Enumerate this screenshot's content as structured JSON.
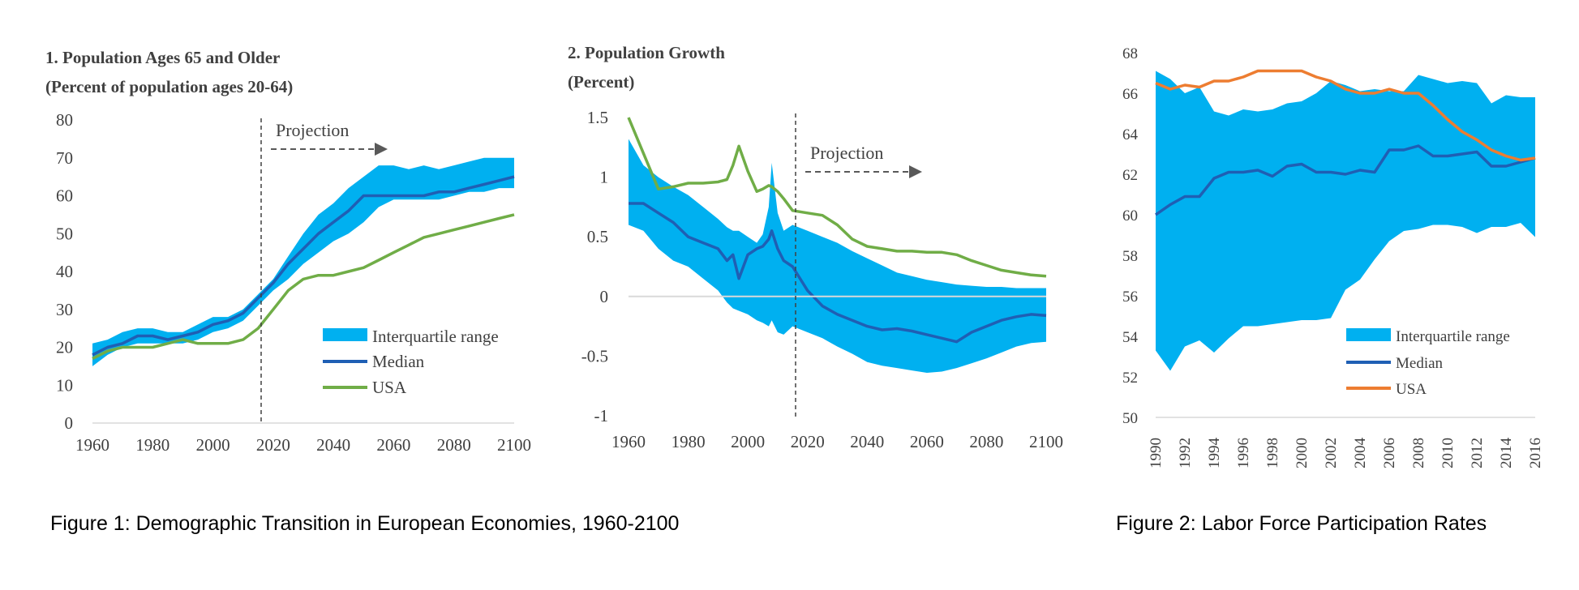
{
  "colors": {
    "iqr": "#00b0f0",
    "median": "#1f5fb4",
    "usa_green": "#70ad47",
    "usa_orange": "#ed7d31",
    "axis_text": "#404040"
  },
  "captions": {
    "figure1": "Figure 1: Demographic Transition in European Economies, 1960-2100",
    "figure2": "Figure 2: Labor Force Participation Rates"
  },
  "chart_data": [
    {
      "type": "area",
      "title_line1": "1. Population  Ages 65 and Older",
      "title_line2": "(Percent of population  ages 20-64)",
      "xlim": [
        1960,
        2100
      ],
      "ylim": [
        0,
        80
      ],
      "x_ticks": [
        "1960",
        "1980",
        "2000",
        "2020",
        "2040",
        "2060",
        "2080",
        "2100"
      ],
      "y_ticks": [
        "80",
        "70",
        "60",
        "50",
        "40",
        "30",
        "20",
        "10",
        "0"
      ],
      "projection_label": "Projection",
      "projection_start": 2016,
      "legend": {
        "iqr": "Interquartile range",
        "median": "Median",
        "usa": "USA"
      },
      "x": [
        1960,
        1965,
        1970,
        1975,
        1980,
        1985,
        1990,
        1995,
        2000,
        2005,
        2010,
        2015,
        2020,
        2025,
        2030,
        2035,
        2040,
        2045,
        2050,
        2055,
        2060,
        2065,
        2070,
        2075,
        2080,
        2085,
        2090,
        2095,
        2100
      ],
      "series": [
        {
          "name": "Interquartile range (high)",
          "values": [
            21,
            22,
            24,
            25,
            25,
            24,
            24,
            26,
            28,
            28,
            30,
            34,
            38,
            44,
            50,
            55,
            58,
            62,
            65,
            68,
            68,
            67,
            68,
            67,
            68,
            69,
            70,
            70,
            70
          ]
        },
        {
          "name": "Interquartile range (low)",
          "values": [
            15,
            18,
            20,
            21,
            21,
            21,
            21,
            22,
            24,
            25,
            27,
            31,
            35,
            38,
            42,
            45,
            48,
            50,
            53,
            57,
            59,
            59,
            59,
            59,
            60,
            61,
            61,
            62,
            62
          ]
        },
        {
          "name": "Median",
          "values": [
            18,
            20,
            21,
            23,
            23,
            22,
            23,
            24,
            26,
            27,
            29,
            33,
            37,
            42,
            46,
            50,
            53,
            56,
            60,
            60,
            60,
            60,
            60,
            61,
            61,
            62,
            63,
            64,
            65
          ]
        },
        {
          "name": "USA",
          "values": [
            17,
            19,
            20,
            20,
            20,
            21,
            22,
            21,
            21,
            21,
            22,
            25,
            30,
            35,
            38,
            39,
            39,
            40,
            41,
            43,
            45,
            47,
            49,
            50,
            51,
            52,
            53,
            54,
            55
          ]
        }
      ]
    },
    {
      "type": "area",
      "title_line1": "2. Population  Growth",
      "title_line2": "(Percent)",
      "xlim": [
        1960,
        2100
      ],
      "ylim": [
        -1,
        1.5
      ],
      "x_ticks": [
        "1960",
        "1980",
        "2000",
        "2020",
        "2040",
        "2060",
        "2080",
        "2100"
      ],
      "y_ticks": [
        "1.5",
        "1",
        "0.5",
        "0",
        "-0.5",
        "-1"
      ],
      "projection_label": "Projection",
      "projection_start": 2016,
      "x": [
        1960,
        1965,
        1970,
        1975,
        1980,
        1985,
        1990,
        1993,
        1995,
        1997,
        2000,
        2003,
        2005,
        2007,
        2008,
        2010,
        2012,
        2015,
        2020,
        2025,
        2030,
        2035,
        2040,
        2045,
        2050,
        2055,
        2060,
        2065,
        2070,
        2075,
        2080,
        2085,
        2090,
        2095,
        2100
      ],
      "series": [
        {
          "name": "Interquartile range (high)",
          "values": [
            1.32,
            1.1,
            1.0,
            0.92,
            0.85,
            0.75,
            0.65,
            0.58,
            0.55,
            0.55,
            0.5,
            0.45,
            0.52,
            0.75,
            1.12,
            0.7,
            0.55,
            0.6,
            0.55,
            0.5,
            0.45,
            0.38,
            0.32,
            0.26,
            0.2,
            0.17,
            0.14,
            0.12,
            0.1,
            0.09,
            0.08,
            0.08,
            0.07,
            0.07,
            0.07
          ]
        },
        {
          "name": "Interquartile range (low)",
          "values": [
            0.6,
            0.55,
            0.4,
            0.3,
            0.25,
            0.15,
            0.05,
            -0.05,
            -0.1,
            -0.12,
            -0.15,
            -0.2,
            -0.22,
            -0.25,
            -0.2,
            -0.3,
            -0.32,
            -0.25,
            -0.3,
            -0.35,
            -0.42,
            -0.48,
            -0.55,
            -0.58,
            -0.6,
            -0.62,
            -0.64,
            -0.63,
            -0.6,
            -0.56,
            -0.52,
            -0.47,
            -0.42,
            -0.39,
            -0.38
          ]
        },
        {
          "name": "Median",
          "values": [
            0.78,
            0.78,
            0.7,
            0.62,
            0.5,
            0.45,
            0.4,
            0.3,
            0.35,
            0.15,
            0.35,
            0.4,
            0.42,
            0.48,
            0.55,
            0.4,
            0.3,
            0.25,
            0.05,
            -0.08,
            -0.15,
            -0.2,
            -0.25,
            -0.28,
            -0.27,
            -0.29,
            -0.32,
            -0.35,
            -0.38,
            -0.3,
            -0.25,
            -0.2,
            -0.17,
            -0.15,
            -0.16
          ]
        },
        {
          "name": "USA",
          "values": [
            1.5,
            1.2,
            0.9,
            0.92,
            0.95,
            0.95,
            0.96,
            0.98,
            1.1,
            1.26,
            1.05,
            0.88,
            0.9,
            0.93,
            0.92,
            0.88,
            0.82,
            0.72,
            0.7,
            0.68,
            0.6,
            0.48,
            0.42,
            0.4,
            0.38,
            0.38,
            0.37,
            0.37,
            0.35,
            0.3,
            0.26,
            0.22,
            0.2,
            0.18,
            0.17
          ]
        }
      ]
    },
    {
      "type": "area",
      "xlim": [
        1990,
        2016
      ],
      "ylim": [
        50,
        68
      ],
      "x_ticks": [
        "1990",
        "1992",
        "1994",
        "1996",
        "1998",
        "2000",
        "2002",
        "2004",
        "2006",
        "2008",
        "2010",
        "2012",
        "2014",
        "2016"
      ],
      "y_ticks": [
        "68",
        "66",
        "64",
        "62",
        "60",
        "58",
        "56",
        "54",
        "52",
        "50"
      ],
      "legend": {
        "iqr": "Interquartile range",
        "median": "Median",
        "usa": "USA"
      },
      "x": [
        1990,
        1991,
        1992,
        1993,
        1994,
        1995,
        1996,
        1997,
        1998,
        1999,
        2000,
        2001,
        2002,
        2003,
        2004,
        2005,
        2006,
        2007,
        2008,
        2009,
        2010,
        2011,
        2012,
        2013,
        2014,
        2015,
        2016
      ],
      "series": [
        {
          "name": "Interquartile range (high)",
          "values": [
            67.1,
            66.7,
            66.0,
            66.3,
            65.1,
            64.9,
            65.2,
            65.1,
            65.2,
            65.5,
            65.6,
            66.0,
            66.6,
            66.4,
            66.1,
            66.2,
            66.1,
            66.1,
            66.9,
            66.7,
            66.5,
            66.6,
            66.5,
            65.5,
            65.9,
            65.8,
            65.8
          ]
        },
        {
          "name": "Interquartile range (low)",
          "values": [
            53.3,
            52.3,
            53.5,
            53.8,
            53.2,
            53.9,
            54.5,
            54.5,
            54.6,
            54.7,
            54.8,
            54.8,
            54.9,
            56.3,
            56.8,
            57.8,
            58.7,
            59.2,
            59.3,
            59.5,
            59.5,
            59.4,
            59.1,
            59.4,
            59.4,
            59.6,
            58.9
          ]
        },
        {
          "name": "Median",
          "values": [
            60.0,
            60.5,
            60.9,
            60.9,
            61.8,
            62.1,
            62.1,
            62.2,
            61.9,
            62.4,
            62.5,
            62.1,
            62.1,
            62.0,
            62.2,
            62.1,
            63.2,
            63.2,
            63.4,
            62.9,
            62.9,
            63.0,
            63.1,
            62.4,
            62.4,
            62.6,
            62.8
          ]
        },
        {
          "name": "USA",
          "values": [
            66.5,
            66.2,
            66.4,
            66.3,
            66.6,
            66.6,
            66.8,
            67.1,
            67.1,
            67.1,
            67.1,
            66.8,
            66.6,
            66.2,
            66.0,
            66.0,
            66.2,
            66.0,
            66.0,
            65.4,
            64.7,
            64.1,
            63.7,
            63.2,
            62.9,
            62.7,
            62.8
          ]
        }
      ]
    }
  ]
}
